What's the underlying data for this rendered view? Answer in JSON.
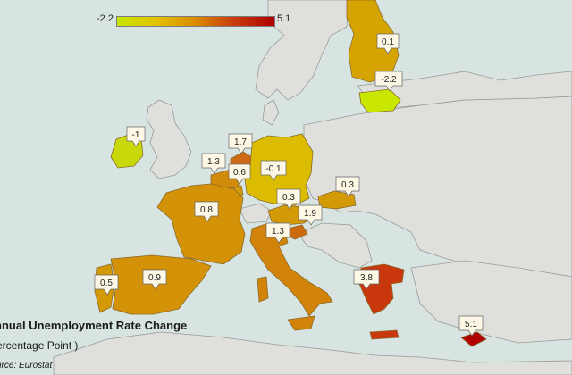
{
  "legend": {
    "min_label": "-2.2",
    "max_label": "5.1",
    "colors": [
      "#c8e600",
      "#e2c200",
      "#d98a00",
      "#c83a0c",
      "#b00000"
    ]
  },
  "caption": {
    "title": "nnual Unemployment Rate Change",
    "subtitle": "ercentage Point )",
    "source": "urce: Eurostat"
  },
  "countries": [
    {
      "id": "ireland",
      "value_label": "-1"
    },
    {
      "id": "belgium",
      "value_label": "1.3"
    },
    {
      "id": "netherlands",
      "value_label": "1.7"
    },
    {
      "id": "luxembourg",
      "value_label": "0.6"
    },
    {
      "id": "germany",
      "value_label": "-0.1"
    },
    {
      "id": "france",
      "value_label": "0.8"
    },
    {
      "id": "austria",
      "value_label": "0.3"
    },
    {
      "id": "slovakia",
      "value_label": "0.3"
    },
    {
      "id": "slovenia",
      "value_label": "1.9"
    },
    {
      "id": "italy",
      "value_label": "1.3"
    },
    {
      "id": "portugal",
      "value_label": "0.5"
    },
    {
      "id": "spain",
      "value_label": "0.9"
    },
    {
      "id": "greece",
      "value_label": "3.8"
    },
    {
      "id": "cyprus",
      "value_label": "5.1"
    },
    {
      "id": "finland",
      "value_label": "0.1"
    },
    {
      "id": "estonia",
      "value_label": "-2.2"
    }
  ]
}
